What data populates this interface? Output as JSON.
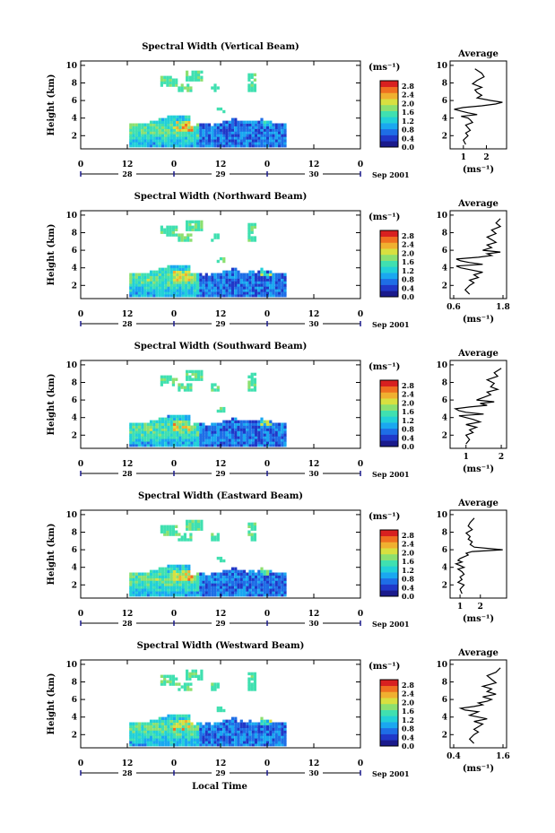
{
  "figure": {
    "xlabel": "Local Time"
  },
  "panels": [
    {
      "title": "Spectral Width (Vertical Beam)",
      "avg_xticks": [
        "1",
        "2"
      ],
      "avg_xlim": [
        0.5,
        2.8
      ]
    },
    {
      "title": "Spectral Width (Northward Beam)",
      "avg_xticks": [
        "0.6",
        "1.8"
      ],
      "avg_xlim": [
        0.6,
        1.8
      ]
    },
    {
      "title": "Spectral Width (Southward Beam)",
      "avg_xticks": [
        "1",
        "2"
      ],
      "avg_xlim": [
        0.6,
        2.1
      ]
    },
    {
      "title": "Spectral Width (Eastward Beam)",
      "avg_xticks": [
        "1",
        "2"
      ],
      "avg_xlim": [
        0.6,
        3.2
      ]
    },
    {
      "title": "Spectral Width (Westward Beam)",
      "avg_xticks": [
        "0.4",
        "1.6"
      ],
      "avg_xlim": [
        0.4,
        1.6
      ]
    }
  ],
  "shared": {
    "ylabel": "Height (km)",
    "yticks": [
      "2",
      "4",
      "6",
      "8",
      "10"
    ],
    "hour_ticks": [
      "0",
      "12",
      "0",
      "12",
      "0",
      "12",
      "0"
    ],
    "day_ticks": [
      "28",
      "29",
      "30"
    ],
    "month_label": "Sep 2001",
    "colorbar_unit": "(ms⁻¹)",
    "colorbar_ticks": [
      "0.0",
      "0.4",
      "0.8",
      "1.2",
      "1.6",
      "2.0",
      "2.4",
      "2.8"
    ],
    "avg_title": "Average",
    "avg_xlabel": "(ms⁻¹)",
    "colors": [
      "#1a1a8c",
      "#2038c8",
      "#1e6ee6",
      "#1aa8f0",
      "#22d0d8",
      "#40e0b0",
      "#8ce070",
      "#d8e040",
      "#f0b030",
      "#f07020",
      "#d82020"
    ]
  },
  "chart_data": [
    {
      "type": "heatmap",
      "title": "Spectral Width (Vertical Beam)",
      "xlabel": "",
      "ylabel": "Height (km)",
      "xlim": [
        0,
        72
      ],
      "ylim": [
        0.5,
        10.5
      ],
      "clim": [
        0,
        2.8
      ],
      "avg_profile": {
        "x": [
          1.1,
          1.0,
          1.2,
          1.1,
          1.3,
          1.2,
          1.1,
          1.4,
          1.3,
          1.2,
          0.9,
          1.6,
          1.2,
          0.9,
          0.6,
          1.0,
          1.8,
          2.4,
          2.7,
          2.2,
          1.6,
          1.8,
          1.6,
          1.5,
          1.8,
          1.4,
          1.6,
          1.9,
          1.8,
          1.5
        ],
        "height": [
          1.0,
          1.5,
          2.0,
          2.3,
          2.6,
          2.9,
          3.2,
          3.5,
          3.8,
          4.0,
          4.2,
          4.4,
          4.6,
          4.8,
          5.0,
          5.2,
          5.4,
          5.6,
          5.8,
          6.0,
          6.3,
          6.6,
          6.9,
          7.2,
          7.5,
          7.9,
          8.3,
          8.7,
          9.1,
          9.6
        ]
      }
    },
    {
      "type": "heatmap",
      "title": "Spectral Width (Northward Beam)",
      "xlabel": "",
      "ylabel": "Height (km)",
      "xlim": [
        0,
        72
      ],
      "ylim": [
        0.5,
        10.5
      ],
      "clim": [
        0,
        2.8
      ],
      "avg_profile": {
        "x": [
          1.0,
          0.9,
          1.0,
          1.1,
          1.0,
          1.2,
          1.1,
          1.3,
          1.0,
          0.8,
          0.7,
          1.3,
          1.0,
          0.8,
          0.7,
          1.2,
          1.5,
          1.4,
          1.7,
          1.3,
          1.5,
          1.4,
          1.6,
          1.5,
          1.4,
          1.6,
          1.5,
          1.7,
          1.6,
          1.7
        ],
        "height": [
          1.0,
          1.5,
          2.0,
          2.3,
          2.6,
          2.9,
          3.2,
          3.5,
          3.8,
          4.0,
          4.2,
          4.4,
          4.6,
          4.8,
          5.0,
          5.2,
          5.4,
          5.6,
          5.8,
          6.0,
          6.3,
          6.6,
          6.9,
          7.2,
          7.5,
          7.9,
          8.3,
          8.7,
          9.1,
          9.6
        ]
      }
    },
    {
      "type": "heatmap",
      "title": "Spectral Width (Southward Beam)",
      "xlabel": "",
      "ylabel": "Height (km)",
      "xlim": [
        0,
        72
      ],
      "ylim": [
        0.5,
        10.5
      ],
      "clim": [
        0,
        2.8
      ],
      "avg_profile": {
        "x": [
          1.0,
          1.1,
          1.0,
          1.2,
          1.1,
          1.3,
          1.0,
          1.4,
          1.2,
          1.0,
          0.8,
          1.5,
          1.0,
          0.8,
          0.7,
          1.1,
          1.6,
          1.4,
          1.8,
          1.3,
          1.5,
          1.7,
          1.6,
          1.9,
          1.7,
          1.8,
          1.6,
          1.9,
          1.8,
          2.0
        ],
        "height": [
          1.0,
          1.5,
          2.0,
          2.3,
          2.6,
          2.9,
          3.2,
          3.5,
          3.8,
          4.0,
          4.2,
          4.4,
          4.6,
          4.8,
          5.0,
          5.2,
          5.4,
          5.6,
          5.8,
          6.0,
          6.3,
          6.6,
          6.9,
          7.2,
          7.5,
          7.9,
          8.3,
          8.7,
          9.1,
          9.6
        ]
      }
    },
    {
      "type": "heatmap",
      "title": "Spectral Width (Eastward Beam)",
      "xlabel": "",
      "ylabel": "Height (km)",
      "xlim": [
        0,
        72
      ],
      "ylim": [
        0.5,
        10.5
      ],
      "clim": [
        0,
        2.8
      ],
      "avg_profile": {
        "x": [
          1.1,
          1.0,
          1.2,
          0.9,
          1.1,
          1.0,
          1.2,
          1.1,
          0.9,
          1.2,
          1.0,
          0.8,
          1.1,
          0.9,
          1.0,
          1.2,
          1.4,
          1.3,
          1.6,
          3.1,
          1.7,
          1.5,
          1.6,
          1.4,
          1.5,
          1.3,
          1.6,
          1.4,
          1.5,
          1.7
        ],
        "height": [
          1.0,
          1.5,
          2.0,
          2.3,
          2.6,
          2.9,
          3.2,
          3.5,
          3.8,
          4.0,
          4.2,
          4.4,
          4.6,
          4.8,
          5.0,
          5.2,
          5.4,
          5.6,
          5.8,
          6.0,
          6.3,
          6.6,
          6.9,
          7.2,
          7.5,
          7.9,
          8.3,
          8.7,
          9.1,
          9.6
        ]
      }
    },
    {
      "type": "heatmap",
      "title": "Spectral Width (Westward Beam)",
      "xlabel": "",
      "ylabel": "Height (km)",
      "xlim": [
        0,
        72
      ],
      "ylim": [
        0.5,
        10.5
      ],
      "clim": [
        0,
        2.8
      ],
      "avg_profile": {
        "x": [
          0.9,
          0.8,
          0.9,
          1.0,
          0.9,
          1.0,
          1.1,
          0.9,
          1.2,
          1.0,
          0.8,
          0.9,
          1.0,
          0.7,
          0.6,
          0.9,
          1.1,
          1.0,
          1.2,
          1.3,
          1.1,
          1.4,
          1.2,
          1.3,
          1.1,
          1.4,
          1.3,
          1.2,
          1.4,
          1.5
        ],
        "height": [
          1.0,
          1.5,
          2.0,
          2.3,
          2.6,
          2.9,
          3.2,
          3.5,
          3.8,
          4.0,
          4.2,
          4.4,
          4.6,
          4.8,
          5.0,
          5.2,
          5.4,
          5.6,
          5.8,
          6.0,
          6.3,
          6.6,
          6.9,
          7.2,
          7.5,
          7.9,
          8.3,
          8.7,
          9.1,
          9.6
        ]
      }
    }
  ]
}
